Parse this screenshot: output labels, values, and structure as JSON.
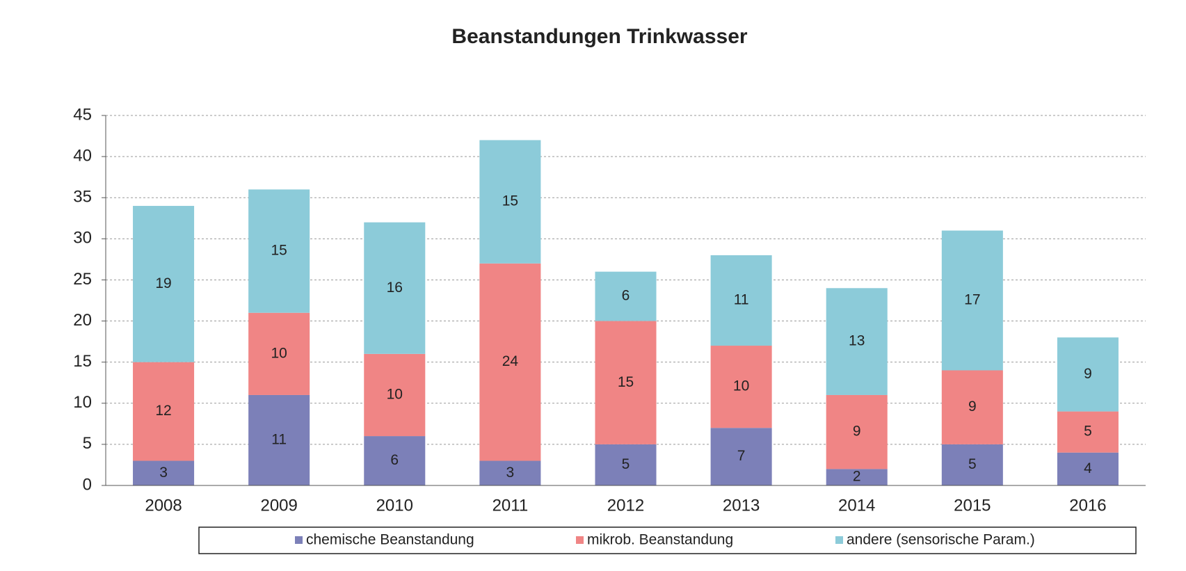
{
  "chart_data": {
    "type": "bar",
    "stacked": true,
    "title": "Beanstandungen Trinkwasser",
    "categories": [
      "2008",
      "2009",
      "2010",
      "2011",
      "2012",
      "2013",
      "2014",
      "2015",
      "2016"
    ],
    "series": [
      {
        "name": "chemische Beanstandung",
        "color": "#7c80b8",
        "values": [
          3,
          11,
          6,
          3,
          5,
          7,
          2,
          5,
          4
        ]
      },
      {
        "name": "mikrob. Beanstandung",
        "color": "#f08585",
        "values": [
          12,
          10,
          10,
          24,
          15,
          10,
          9,
          9,
          5
        ]
      },
      {
        "name": "andere (sensorische Param.)",
        "color": "#8ccbd9",
        "values": [
          19,
          15,
          16,
          15,
          6,
          11,
          13,
          17,
          9
        ]
      }
    ],
    "ylim": [
      0,
      45
    ],
    "yticks": [
      0,
      5,
      10,
      15,
      20,
      25,
      30,
      35,
      40,
      45
    ],
    "grid": true,
    "legend": "bottom"
  }
}
